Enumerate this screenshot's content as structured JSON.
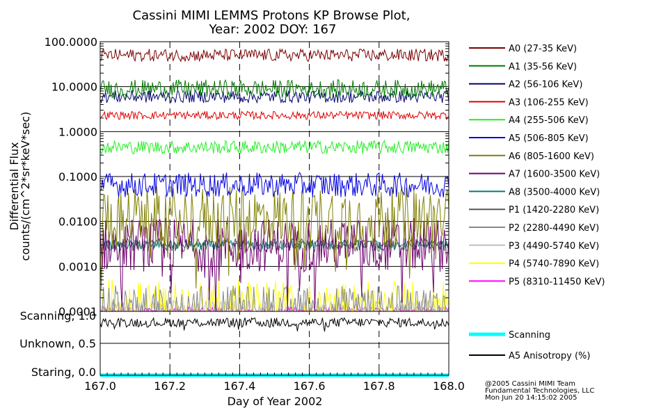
{
  "title_line1": "Cassini MIMI LEMMS Protons KP Browse Plot,",
  "title_line2": "Year: 2002 DOY: 167",
  "credits": [
    "@2005 Cassini MIMI Team",
    "Fundamental Technologies, LLC",
    "Mon Jun 20 14:15:02 2005"
  ],
  "chart_data": [
    {
      "type": "line",
      "title": "Cassini MIMI LEMMS Protons KP Browse Plot, Year: 2002 DOY: 167",
      "xlabel": "Day of Year 2002",
      "ylabel": "Differential Flux counts/(cm^2*sr*keV*sec)",
      "ylabel_line1": "Differential Flux",
      "ylabel_line2": "counts/(cm^2*sr*keV*sec)",
      "y_scale": "log",
      "xlim": [
        167.0,
        168.0
      ],
      "ylim": [
        0.0001,
        100.0
      ],
      "x_ticks": [
        "167.0",
        "167.2",
        "167.4",
        "167.6",
        "167.8",
        "168.0"
      ],
      "y_ticks": [
        {
          "value": 100,
          "label": "100.0000"
        },
        {
          "value": 10,
          "label": "10.0000"
        },
        {
          "value": 1,
          "label": "1.0000"
        },
        {
          "value": 0.1,
          "label": "0.1000"
        },
        {
          "value": 0.01,
          "label": "0.0100"
        },
        {
          "value": 0.001,
          "label": "0.0010"
        },
        {
          "value": 0.0001,
          "label": "0.0001"
        }
      ],
      "grid": true,
      "legend_position": "right",
      "series": [
        {
          "name": "A0 (27-35 KeV)",
          "color": "#7a0000",
          "level": 50,
          "noise": 0.28
        },
        {
          "name": "A1 (35-56 KeV)",
          "color": "#007a00",
          "level": 9,
          "noise": 0.4
        },
        {
          "name": "A2 (56-106 KeV)",
          "color": "#00006e",
          "level": 6,
          "noise": 0.28
        },
        {
          "name": "A3 (106-255 KeV)",
          "color": "#e00000",
          "level": 2.3,
          "noise": 0.18
        },
        {
          "name": "A4 (255-506 KeV)",
          "color": "#22ee22",
          "level": 0.45,
          "noise": 0.3
        },
        {
          "name": "A5 (506-805 KeV)",
          "color": "#0000e0",
          "level": 0.065,
          "noise": 0.55
        },
        {
          "name": "A6 (805-1600 KeV)",
          "color": "#7f7f00",
          "level": 0.012,
          "noise": 1.4
        },
        {
          "name": "A7 (1600-3500 KeV)",
          "color": "#6e006e",
          "level": 0.003,
          "noise": 1.2
        },
        {
          "name": "A8 (3500-4000 KeV)",
          "color": "#007a7a",
          "level": 0.003,
          "noise": 0.2
        },
        {
          "name": "P1 (1420-2280 KeV)",
          "color": "#555555",
          "level": 0.003,
          "noise": 0.3
        },
        {
          "name": "P2 (2280-4490 KeV)",
          "color": "#888888",
          "level": 0.00012,
          "noise": 1.0
        },
        {
          "name": "P3 (4490-5740 KeV)",
          "color": "#c0c0c0",
          "level": 0.0001,
          "noise": 0.5
        },
        {
          "name": "P4 (5740-7890 KeV)",
          "color": "#ffff00",
          "level": 0.00013,
          "noise": 1.2
        },
        {
          "name": "P5 (8310-11450 KeV)",
          "color": "#ff00ff",
          "level": 0.0001,
          "noise": 0.2
        }
      ]
    },
    {
      "type": "line",
      "xlabel": "Day of Year 2002",
      "xlim": [
        167.0,
        168.0
      ],
      "x_ticks": [
        "167.0",
        "167.2",
        "167.4",
        "167.6",
        "167.8",
        "168.0"
      ],
      "ylim": [
        0.0,
        1.0
      ],
      "y_ticks": [
        "Scanning, 1.0",
        "Unknown, 0.5",
        "Staring, 0.0"
      ],
      "grid": true,
      "legend_position": "right",
      "series": [
        {
          "name": "Scanning",
          "color": "#00ffff",
          "level": 0.0,
          "noise": 0.0
        },
        {
          "name": "A5 Anisotropy (%)",
          "color": "#000000",
          "level": 0.85,
          "noise": 0.08
        }
      ]
    }
  ]
}
